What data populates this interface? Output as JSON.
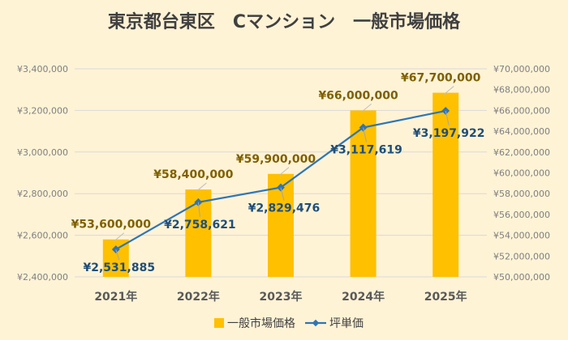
{
  "chart_data": {
    "type": "bar+line",
    "title": "東京都台東区　Cマンション　一般市場価格",
    "categories": [
      "2021年",
      "2022年",
      "2023年",
      "2024年",
      "2025年"
    ],
    "series": [
      {
        "name": "一般市場価格",
        "type": "bar",
        "axis": "right",
        "values": [
          53600000,
          58400000,
          59900000,
          66000000,
          67700000
        ],
        "labels": [
          "¥53,600,000",
          "¥58,400,000",
          "¥59,900,000",
          "¥66,000,000",
          "¥67,700,000"
        ]
      },
      {
        "name": "坪単価",
        "type": "line",
        "axis": "left",
        "values": [
          2531885,
          2758621,
          2829476,
          3117619,
          3197922
        ],
        "labels": [
          "¥2,531,885",
          "¥2,758,621",
          "¥2,829,476",
          "¥3,117,619",
          "¥3,197,922"
        ]
      }
    ],
    "left_axis": {
      "min": 2400000,
      "max": 3400000,
      "ticks": [
        2400000,
        2600000,
        2800000,
        3000000,
        3200000,
        3400000
      ],
      "tick_labels": [
        "¥2,400,000",
        "¥2,600,000",
        "¥2,800,000",
        "¥3,000,000",
        "¥3,200,000",
        "¥3,400,000"
      ]
    },
    "right_axis": {
      "min": 50000000,
      "max": 70000000,
      "ticks": [
        50000000,
        52000000,
        54000000,
        56000000,
        58000000,
        60000000,
        62000000,
        64000000,
        66000000,
        68000000,
        70000000
      ],
      "tick_labels": [
        "¥50,000,000",
        "¥52,000,000",
        "¥54,000,000",
        "¥56,000,000",
        "¥58,000,000",
        "¥60,000,000",
        "¥62,000,000",
        "¥64,000,000",
        "¥66,000,000",
        "¥68,000,000",
        "¥70,000,000"
      ]
    },
    "legend": {
      "position": "bottom",
      "items": [
        "一般市場価格",
        "坪単価"
      ]
    },
    "grid": true,
    "colors": {
      "background": "#FFF3D6",
      "bar": "#FFC000",
      "line": "#2E75B6",
      "title": "#404040",
      "axis_text": "#7F7F7F",
      "bar_label": "#7F6000",
      "line_label": "#1F4E79",
      "grid": "#D9D9D9"
    }
  }
}
